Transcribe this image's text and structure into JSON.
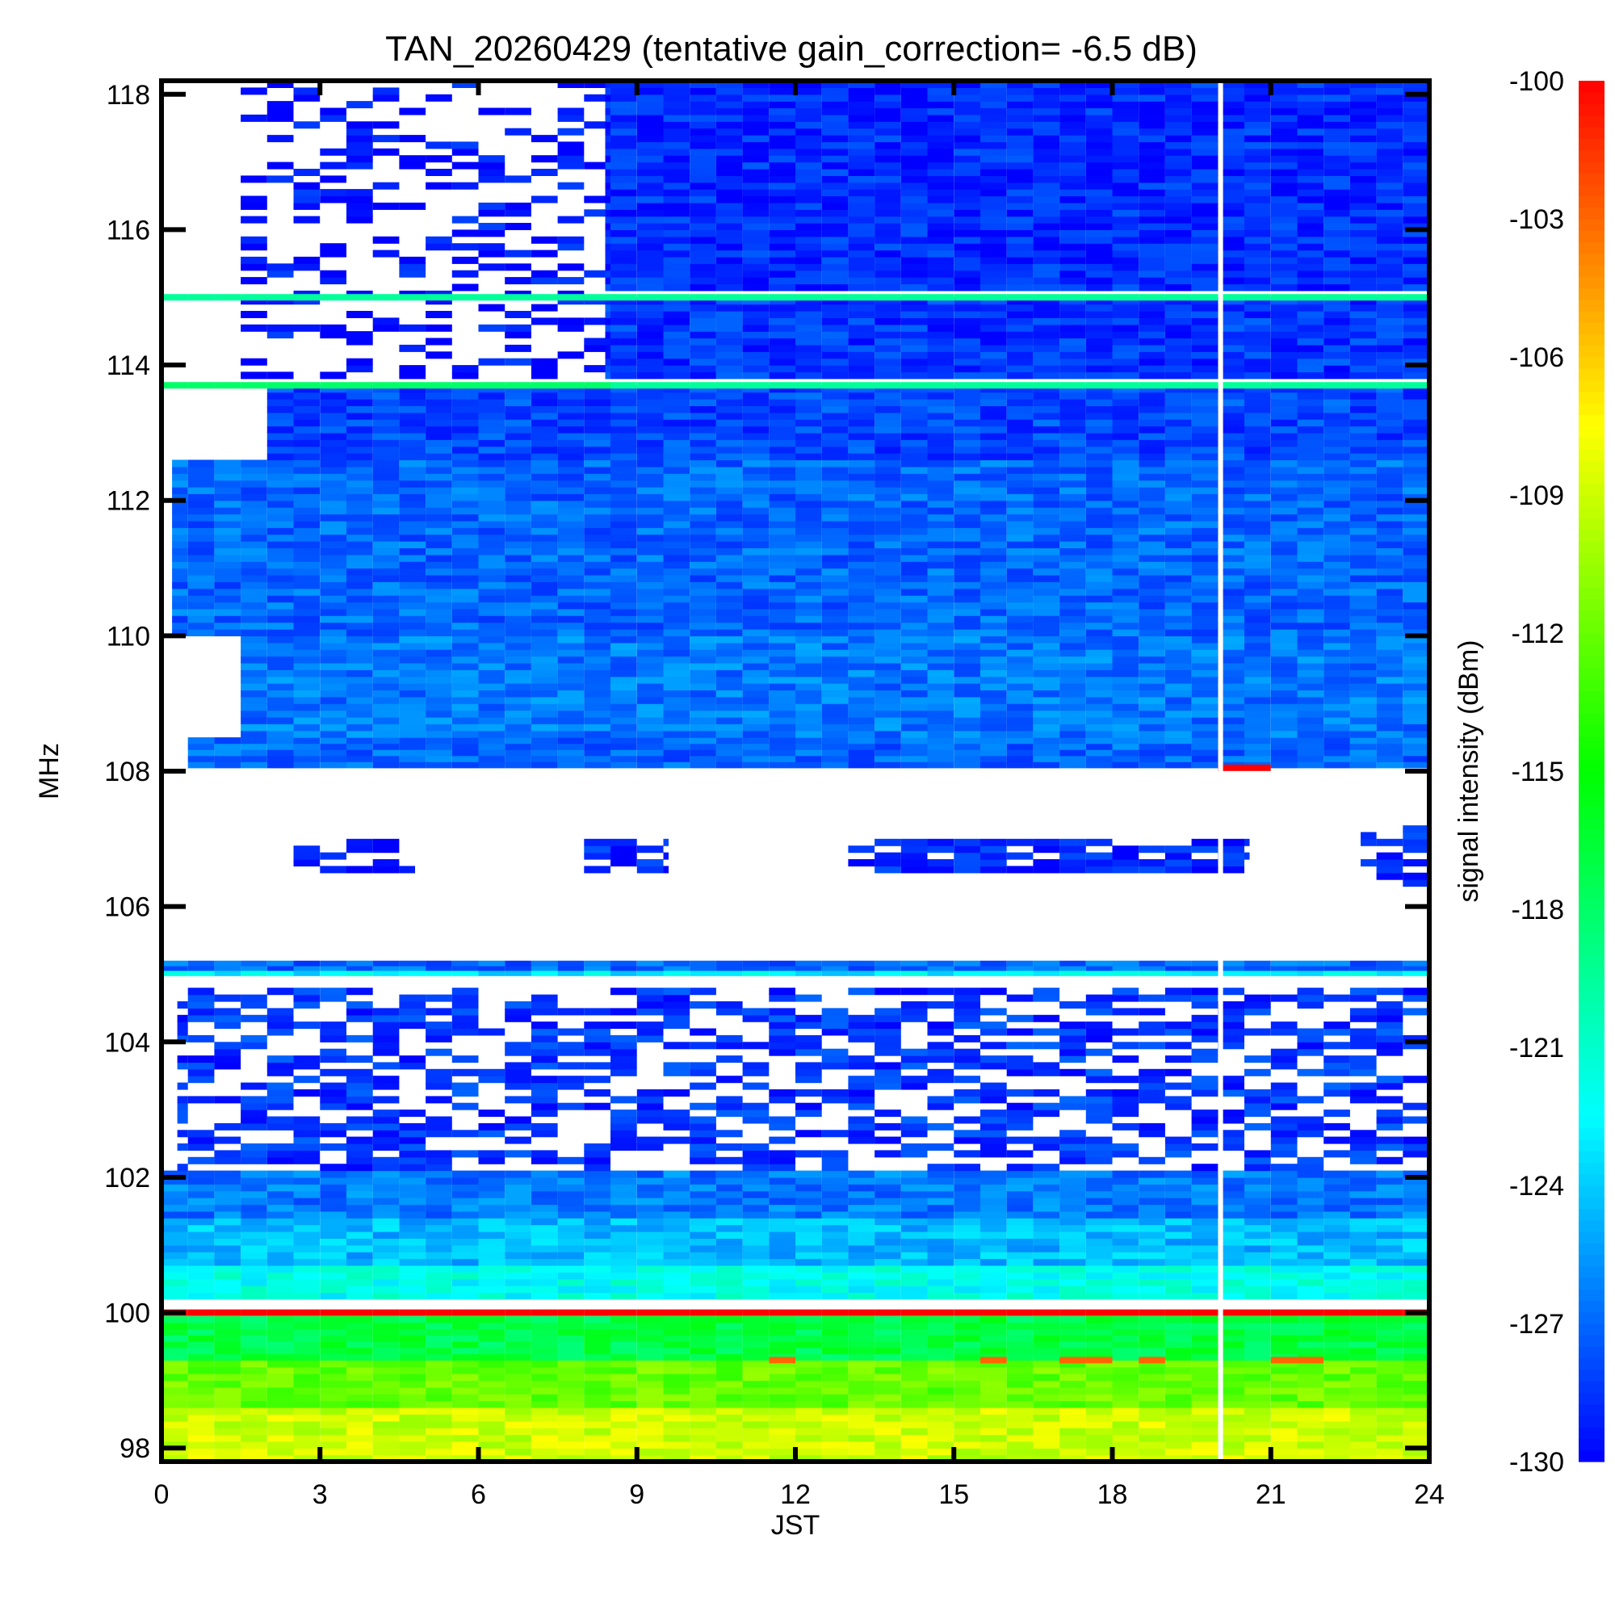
{
  "chart_data": {
    "type": "heatmap",
    "title": "TAN_20260429 (tentative gain_correction= -6.5 dB)",
    "xlabel": "JST",
    "ylabel": "MHz",
    "colorbar_label": "signal intensity (dBm)",
    "xlim": [
      0,
      24
    ],
    "ylim": [
      97.8,
      118.2
    ],
    "xticks": [
      0,
      3,
      6,
      9,
      12,
      15,
      18,
      21,
      24
    ],
    "xtick_labels": [
      "0",
      "3",
      "6",
      "9",
      "12",
      "15",
      "18",
      "21",
      "24"
    ],
    "yticks": [
      98,
      100,
      102,
      104,
      106,
      108,
      110,
      112,
      114,
      116,
      118
    ],
    "ytick_labels": [
      "98",
      "100",
      "102",
      "104",
      "106",
      "108",
      "110",
      "112",
      "114",
      "116",
      "118"
    ],
    "colorbar_range": [
      -130,
      -100
    ],
    "colorbar_ticks": [
      -100,
      -103,
      -106,
      -109,
      -112,
      -115,
      -118,
      -121,
      -124,
      -127,
      -130
    ],
    "colorbar_tick_labels": [
      "-100",
      "-103",
      "-106",
      "-109",
      "-112",
      "-115",
      "-118",
      "-121",
      "-124",
      "-127",
      "-130"
    ],
    "colormap": [
      "#0000ff",
      "#0080ff",
      "#00ffff",
      "#00ff80",
      "#00ff00",
      "#80ff00",
      "#ffff00",
      "#ff8000",
      "#ff0000"
    ],
    "background": "#ffffff",
    "data_gap_jst": 20.05,
    "bands": [
      {
        "f0": 97.8,
        "f1": 98.6,
        "level": -109,
        "t0": 0,
        "t1": 24
      },
      {
        "f0": 98.6,
        "f1": 99.3,
        "level": -112,
        "t0": 0,
        "t1": 24
      },
      {
        "f0": 99.3,
        "f1": 99.95,
        "level": -117,
        "t0": 0,
        "t1": 24
      },
      {
        "f0": 100.2,
        "f1": 100.7,
        "level": -122,
        "t0": 0,
        "t1": 24
      },
      {
        "f0": 100.7,
        "f1": 101.4,
        "level": -124.5,
        "t0": 0,
        "t1": 24
      },
      {
        "f0": 101.4,
        "f1": 102.1,
        "level": -126.5,
        "t0": 0,
        "t1": 24
      },
      {
        "f0": 102.1,
        "f1": 104.8,
        "level": -128.5,
        "t0": 0.3,
        "t1": 24,
        "density": 0.55
      },
      {
        "f0": 105.05,
        "f1": 105.2,
        "level": -127,
        "t0": 0,
        "t1": 24
      },
      {
        "f0": 104.98,
        "f1": 105.05,
        "level": -123,
        "t0": 0,
        "t1": 24
      },
      {
        "f0": 106.5,
        "f1": 107.0,
        "level": -129,
        "t0": 8.0,
        "t1": 9.6,
        "density": 0.7
      },
      {
        "f0": 106.5,
        "f1": 107.0,
        "level": -129,
        "t0": 13.0,
        "t1": 20.6,
        "density": 0.75
      },
      {
        "f0": 106.3,
        "f1": 107.2,
        "level": -129,
        "t0": 22.7,
        "t1": 24,
        "density": 0.7
      },
      {
        "f0": 106.5,
        "f1": 107.0,
        "level": -129.5,
        "t0": 2.5,
        "t1": 4.8,
        "density": 0.5
      },
      {
        "f0": 108.05,
        "f1": 108.5,
        "level": -127,
        "t0": 0.5,
        "t1": 24
      },
      {
        "f0": 108.5,
        "f1": 110.0,
        "level": -126.5,
        "t0": 1.5,
        "t1": 24
      },
      {
        "f0": 110.0,
        "f1": 112.6,
        "level": -127,
        "t0": 0.2,
        "t1": 24
      },
      {
        "f0": 112.6,
        "f1": 113.7,
        "level": -128,
        "t0": 2.0,
        "t1": 24
      },
      {
        "f0": 113.8,
        "f1": 115.0,
        "level": -128.5,
        "t0": 8.4,
        "t1": 24
      },
      {
        "f0": 115.1,
        "f1": 118.2,
        "level": -128.8,
        "t0": 8.4,
        "t1": 24
      },
      {
        "f0": 113.8,
        "f1": 118.2,
        "level": -129.5,
        "t0": 1.5,
        "t1": 8.4,
        "density": 0.35
      }
    ],
    "lines": [
      {
        "freq": 100.0,
        "level": -100,
        "t0": 0,
        "t1": 24
      },
      {
        "freq": 113.7,
        "level": -118,
        "t0": 0,
        "t1": 8.5
      },
      {
        "freq": 113.7,
        "level": -119.5,
        "t0": 8.5,
        "t1": 24
      },
      {
        "freq": 115.0,
        "level": -119.5,
        "t0": 0,
        "t1": 24
      },
      {
        "freq": 108.05,
        "level": -100,
        "t0": 20.0,
        "t1": 21.0
      },
      {
        "freq": 99.3,
        "level": -103,
        "t0": 0,
        "t1": 24,
        "density": 0.15
      }
    ]
  }
}
